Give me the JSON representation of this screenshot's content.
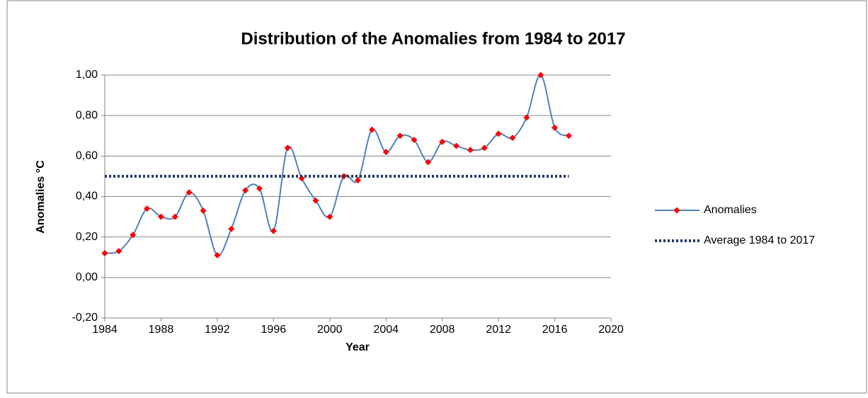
{
  "chart_data": {
    "type": "line",
    "title": "Distribution of the Anomalies from 1984 to 2017",
    "x_label": "Year",
    "y_label": "Anomalies °C",
    "xlim": [
      1984,
      2020
    ],
    "xticks": [
      1984,
      1988,
      1992,
      1996,
      2000,
      2004,
      2008,
      2012,
      2016,
      2020
    ],
    "ylim": [
      -0.2,
      1.0
    ],
    "yticks": [
      {
        "value": -0.2,
        "label": "-0,20"
      },
      {
        "value": 0,
        "label": "0,00"
      },
      {
        "value": 0.2,
        "label": "0,20"
      },
      {
        "value": 0.4,
        "label": "0,40"
      },
      {
        "value": 0.6,
        "label": "0,60"
      },
      {
        "value": 0.8,
        "label": "0,80"
      },
      {
        "value": 1.0,
        "label": "1,00"
      }
    ],
    "grid": true,
    "legend": "right",
    "series": [
      {
        "name": "Anomalies",
        "color": "#4f81bd",
        "marker_color": "#ff0000",
        "smooth": true,
        "x": [
          1984,
          1985,
          1986,
          1987,
          1988,
          1989,
          1990,
          1991,
          1992,
          1993,
          1994,
          1995,
          1996,
          1997,
          1998,
          1999,
          2000,
          2001,
          2002,
          2003,
          2004,
          2005,
          2006,
          2007,
          2008,
          2009,
          2010,
          2011,
          2012,
          2013,
          2014,
          2015,
          2016,
          2017
        ],
        "values": [
          0.12,
          0.13,
          0.21,
          0.34,
          0.3,
          0.3,
          0.42,
          0.33,
          0.11,
          0.24,
          0.43,
          0.44,
          0.23,
          0.64,
          0.49,
          0.38,
          0.3,
          0.5,
          0.48,
          0.73,
          0.62,
          0.7,
          0.68,
          0.57,
          0.67,
          0.65,
          0.63,
          0.64,
          0.71,
          0.69,
          0.79,
          1.0,
          0.74,
          0.7
        ]
      },
      {
        "name": "Average 1984 to 2017",
        "color": "#1f3864",
        "dotted": true,
        "x": [
          1984,
          2017
        ],
        "values": [
          0.5,
          0.5
        ]
      }
    ]
  }
}
